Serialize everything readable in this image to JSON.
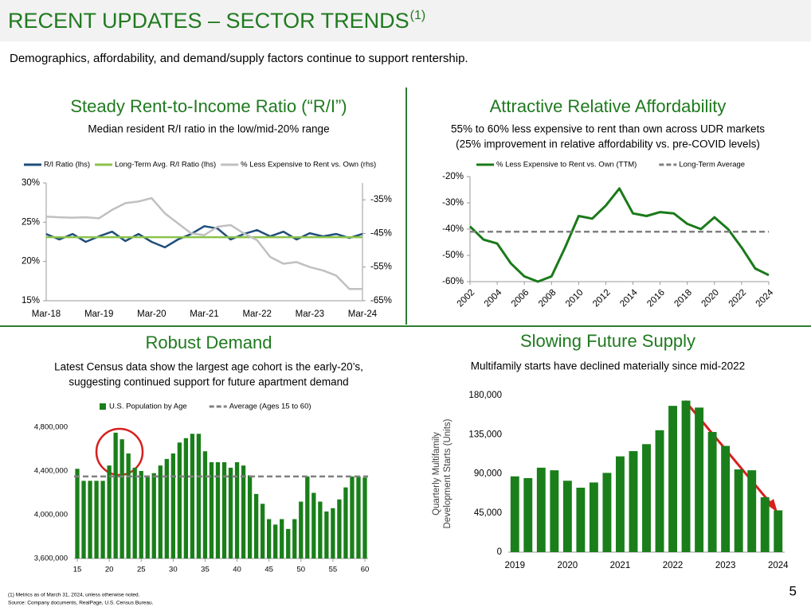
{
  "header": {
    "title": "RECENT UPDATES – SECTOR TRENDS",
    "superscript": "(1)",
    "subtitle": "Demographics, affordability, and demand/supply factors continue to support rentership."
  },
  "footnotes": [
    "(1)    Metrics as of March 31, 2024, unless otherwise noted.",
    "Source: Company documents, RealPage, U.S. Census Bureau."
  ],
  "page_number": "5",
  "chart_data": [
    {
      "type": "line",
      "title": "Steady Rent-to-Income Ratio (“R/I”)",
      "subtitle": [
        "Median resident R/I ratio in the low/mid-20% range"
      ],
      "categories": [
        "Mar-18",
        null,
        null,
        null,
        "Mar-19",
        null,
        null,
        null,
        "Mar-20",
        null,
        null,
        null,
        "Mar-21",
        null,
        null,
        null,
        "Mar-22",
        null,
        null,
        null,
        "Mar-23",
        null,
        null,
        null,
        "Mar-24"
      ],
      "series": [
        {
          "name": "R/I Ratio (lhs)",
          "color": "#1f4e79",
          "values": [
            23.5,
            22.8,
            23.5,
            22.5,
            23.2,
            23.8,
            22.6,
            23.5,
            22.5,
            21.8,
            22.8,
            23.5,
            24.5,
            24.2,
            22.8,
            23.5,
            24.0,
            23.2,
            23.8,
            22.8,
            23.6,
            23.2,
            23.5,
            23.0,
            23.5
          ]
        },
        {
          "name": "Long-Term Avg. R/I Ratio (lhs)",
          "color": "#8bc34a",
          "values": [
            23.1,
            23.1,
            23.1,
            23.1,
            23.1,
            23.1,
            23.1,
            23.1,
            23.1,
            23.1,
            23.1,
            23.1,
            23.1,
            23.1,
            23.1,
            23.1,
            23.1,
            23.1,
            23.1,
            23.1,
            23.1,
            23.1,
            23.1,
            23.1,
            23.1
          ]
        },
        {
          "name": "% Less Expensive to Rent vs. Own (rhs)",
          "color": "#c0c0c0",
          "axis": "y2",
          "values": [
            -40,
            -40.2,
            -40.3,
            -40.2,
            -40.5,
            -38,
            -36,
            -35.5,
            -34.5,
            -39,
            -42,
            -45,
            -45.5,
            -43,
            -42.5,
            -45,
            -47,
            -52,
            -54,
            -53.5,
            -55,
            -56,
            -57.5,
            -61.5,
            -61.5
          ]
        }
      ],
      "ylim": [
        15,
        30
      ],
      "yticks": [
        {
          "value": 15,
          "label": "15%"
        },
        {
          "value": 20,
          "label": "20%"
        },
        {
          "value": 25,
          "label": "25%"
        },
        {
          "value": 30,
          "label": "30%"
        }
      ],
      "y2lim": [
        -65,
        -30
      ],
      "y2ticks": [
        {
          "value": -65,
          "label": "-65%"
        },
        {
          "value": -55,
          "label": "-55%"
        },
        {
          "value": -45,
          "label": "-45%"
        },
        {
          "value": -35,
          "label": "-35%"
        }
      ],
      "grid": false
    },
    {
      "type": "line",
      "title": "Attractive Relative Affordability",
      "subtitle": [
        "55% to 60% less expensive to rent than own across UDR markets",
        "(25% improvement in relative affordability vs. pre-COVID levels)"
      ],
      "x": [
        2002,
        2003,
        2004,
        2005,
        2006,
        2007,
        2008,
        2009,
        2010,
        2011,
        2012,
        2013,
        2014,
        2015,
        2016,
        2017,
        2018,
        2019,
        2020,
        2021,
        2022,
        2023,
        2024
      ],
      "series": [
        {
          "name": "% Less Expensive to Rent vs. Own (TTM)",
          "color": "#1a7a1a",
          "values": [
            -39,
            -44,
            -45.5,
            -53,
            -58,
            -60,
            -58,
            -47,
            -35,
            -36,
            -31,
            -24.5,
            -34,
            -35,
            -33.5,
            -34,
            -38,
            -40,
            -35.5,
            -40,
            -47,
            -55,
            -57.5
          ]
        }
      ],
      "reference_lines": [
        {
          "name": "Long-Term Average",
          "value": -41,
          "color": "#808080",
          "dashed": true
        }
      ],
      "xlim": [
        2002,
        2024
      ],
      "xticks": [
        2002,
        2004,
        2006,
        2008,
        2010,
        2012,
        2014,
        2016,
        2018,
        2020,
        2022,
        2024
      ],
      "ylim": [
        -60,
        -20
      ],
      "yticks": [
        {
          "value": -60,
          "label": "-60%"
        },
        {
          "value": -50,
          "label": "-50%"
        },
        {
          "value": -40,
          "label": "-40%"
        },
        {
          "value": -30,
          "label": "-30%"
        },
        {
          "value": -20,
          "label": "-20%"
        }
      ],
      "grid": false
    },
    {
      "type": "bar",
      "title": "Robust Demand",
      "subtitle": [
        "Latest Census data show the largest age cohort is the early-20’s,",
        "suggesting continued support for future apartment demand"
      ],
      "x": [
        15,
        16,
        17,
        18,
        19,
        20,
        21,
        22,
        23,
        24,
        25,
        26,
        27,
        28,
        29,
        30,
        31,
        32,
        33,
        34,
        35,
        36,
        37,
        38,
        39,
        40,
        41,
        42,
        43,
        44,
        45,
        46,
        47,
        48,
        49,
        50,
        51,
        52,
        53,
        54,
        55,
        56,
        57,
        58,
        59,
        60
      ],
      "series": [
        {
          "name": "U.S. Population by Age",
          "color": "#1a7f1a",
          "values": [
            4420000,
            4310000,
            4310000,
            4310000,
            4310000,
            4450000,
            4750000,
            4690000,
            4560000,
            4430000,
            4400000,
            4360000,
            4380000,
            4450000,
            4510000,
            4560000,
            4660000,
            4700000,
            4740000,
            4740000,
            4580000,
            4480000,
            4480000,
            4480000,
            4430000,
            4480000,
            4450000,
            4360000,
            4190000,
            4100000,
            3960000,
            3910000,
            3960000,
            3870000,
            3960000,
            4120000,
            4350000,
            4200000,
            4120000,
            4030000,
            4060000,
            4140000,
            4250000,
            4350000,
            4350000,
            4340000
          ]
        }
      ],
      "reference_lines": [
        {
          "name": "Average (Ages 15 to 60)",
          "value": 4350000,
          "color": "#808080",
          "dashed": true
        }
      ],
      "xlim": [
        14.5,
        60.5
      ],
      "xticks": [
        15,
        20,
        25,
        30,
        35,
        40,
        45,
        50,
        55,
        60
      ],
      "ylim": [
        3600000,
        4800000
      ],
      "yticks": [
        {
          "value": 3600000,
          "label": "3,600,000"
        },
        {
          "value": 4000000,
          "label": "4,000,000"
        },
        {
          "value": 4400000,
          "label": "4,400,000"
        },
        {
          "value": 4800000,
          "label": "4,800,000"
        }
      ],
      "grid": false
    },
    {
      "type": "bar",
      "title": "Slowing Future Supply",
      "subtitle": [
        "Multifamily starts have declined materially since mid-2022"
      ],
      "ylabel": [
        "Quarterly Multifamily",
        "Development Starts (Units)"
      ],
      "categories": [
        "2019",
        null,
        null,
        null,
        "2020",
        null,
        null,
        null,
        "2021",
        null,
        null,
        null,
        "2022",
        null,
        null,
        null,
        "2023",
        null,
        null,
        null,
        "2024"
      ],
      "values": [
        87000,
        85000,
        97000,
        94000,
        82000,
        74000,
        80000,
        91000,
        110000,
        116000,
        124000,
        140000,
        168000,
        174000,
        166000,
        138000,
        122000,
        95000,
        94000,
        63000,
        48000
      ],
      "color": "#1a7f1a",
      "ylim": [
        0,
        180000
      ],
      "yticks": [
        0,
        {
          "value": 45000,
          "label": "45,000"
        },
        {
          "value": 90000,
          "label": "90,000"
        },
        {
          "value": 135000,
          "label": "135,000"
        },
        {
          "value": 180000,
          "label": "180,000"
        }
      ],
      "grid": false
    }
  ]
}
